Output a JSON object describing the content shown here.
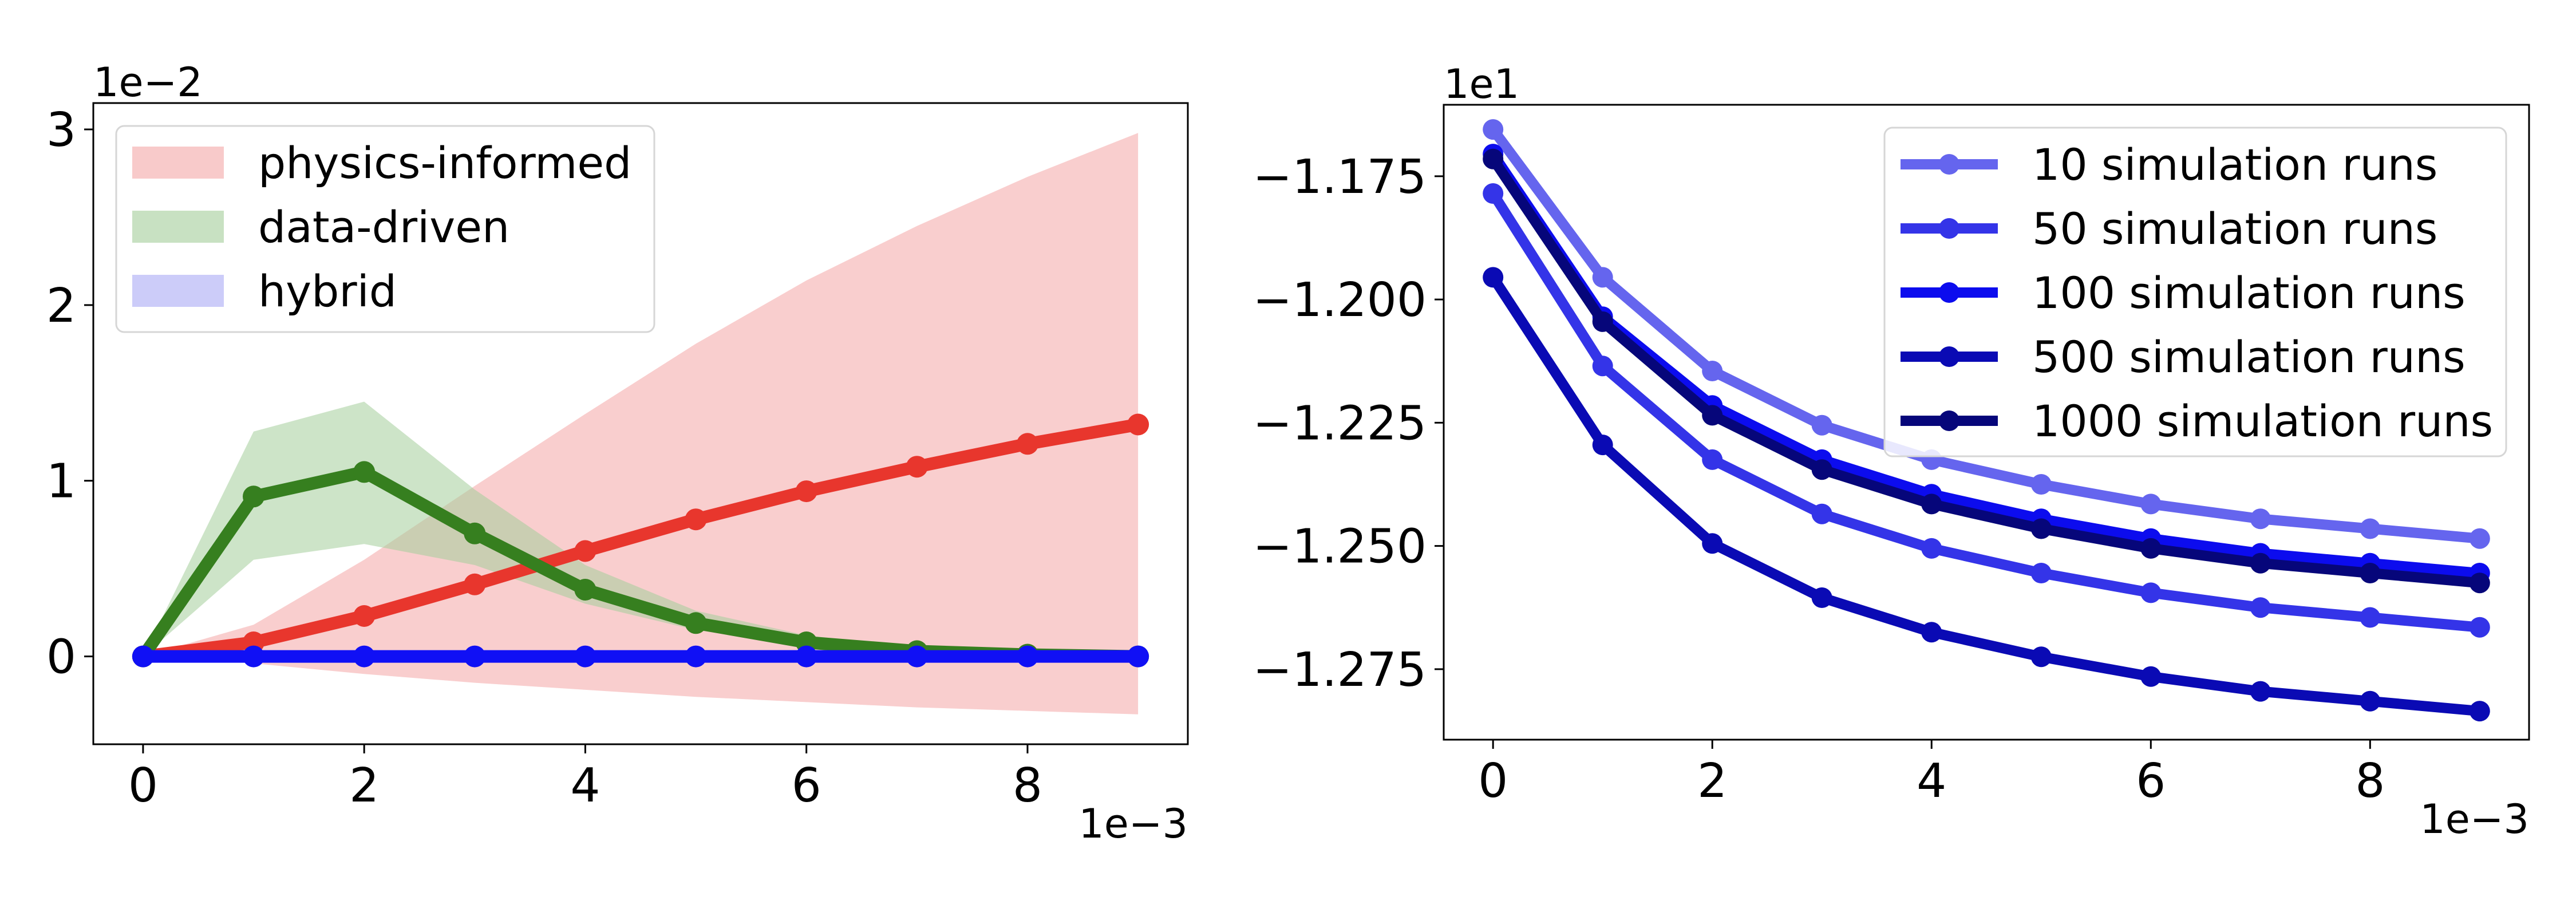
{
  "chart_data": [
    {
      "type": "line",
      "title": "",
      "xlabel": "",
      "ylabel": "",
      "x": [
        0,
        1,
        2,
        3,
        4,
        5,
        6,
        7,
        8,
        9
      ],
      "x_scale_label": "1e−3",
      "y_scale_label": "1e−2",
      "xlim": [
        -0.45,
        9.45
      ],
      "ylim": [
        -0.5,
        3.15
      ],
      "xticks": [
        0,
        2,
        4,
        6,
        8
      ],
      "xtick_labels": [
        "0",
        "2",
        "4",
        "6",
        "8"
      ],
      "yticks": [
        0,
        1,
        2,
        3
      ],
      "ytick_labels": [
        "0",
        "1",
        "2",
        "3"
      ],
      "grid": false,
      "legend_position": "top-left",
      "series": [
        {
          "name": "physics-informed",
          "color": "#e8362d",
          "band_color": "#f4a6a6",
          "values": [
            0,
            0.08,
            0.23,
            0.41,
            0.6,
            0.78,
            0.94,
            1.08,
            1.21,
            1.32
          ],
          "lower": [
            0,
            -0.04,
            -0.1,
            -0.15,
            -0.19,
            -0.23,
            -0.26,
            -0.29,
            -0.31,
            -0.33
          ],
          "upper": [
            0,
            0.18,
            0.55,
            0.97,
            1.38,
            1.78,
            2.14,
            2.45,
            2.73,
            2.98
          ]
        },
        {
          "name": "data-driven",
          "color": "#367f1f",
          "band_color": "#a4cd9a",
          "values": [
            0,
            0.91,
            1.05,
            0.7,
            0.38,
            0.19,
            0.08,
            0.03,
            0.01,
            0.0
          ],
          "lower": [
            0,
            0.55,
            0.64,
            0.52,
            0.3,
            0.15,
            0.06,
            0.02,
            0.01,
            0.0
          ],
          "upper": [
            0,
            1.28,
            1.45,
            0.95,
            0.52,
            0.26,
            0.12,
            0.05,
            0.02,
            0.01
          ]
        },
        {
          "name": "hybrid",
          "color": "#1010f5",
          "band_color": "#aaaaf5",
          "values": [
            0,
            0,
            0,
            0,
            0,
            0,
            0,
            0,
            0,
            0
          ],
          "lower": [
            0,
            -0.01,
            -0.01,
            -0.01,
            -0.01,
            -0.01,
            -0.01,
            -0.01,
            -0.01,
            -0.01
          ],
          "upper": [
            0,
            0.01,
            0.01,
            0.01,
            0.01,
            0.01,
            0.01,
            0.01,
            0.01,
            0.01
          ]
        }
      ]
    },
    {
      "type": "line",
      "title": "",
      "xlabel": "",
      "ylabel": "",
      "x": [
        0,
        1,
        2,
        3,
        4,
        5,
        6,
        7,
        8,
        9
      ],
      "x_scale_label": "1e−3",
      "y_scale_label": "1e1",
      "xlim": [
        -0.45,
        9.45
      ],
      "ylim": [
        -1.2893,
        -1.1605
      ],
      "xticks": [
        0,
        2,
        4,
        6,
        8
      ],
      "xtick_labels": [
        "0",
        "2",
        "4",
        "6",
        "8"
      ],
      "yticks": [
        -1.175,
        -1.2,
        -1.225,
        -1.25,
        -1.275
      ],
      "ytick_labels": [
        "−1.175",
        "−1.200",
        "−1.225",
        "−1.250",
        "−1.275"
      ],
      "grid": false,
      "legend_position": "top-right",
      "series": [
        {
          "name": "10 simulation runs",
          "color": "#6565ee",
          "values": [
            -1.1655,
            -1.1955,
            -1.2145,
            -1.2255,
            -1.2325,
            -1.2375,
            -1.2415,
            -1.2445,
            -1.2465,
            -1.2485
          ]
        },
        {
          "name": "50 simulation runs",
          "color": "#3434e8",
          "values": [
            -1.1785,
            -1.2135,
            -1.2325,
            -1.2435,
            -1.2505,
            -1.2555,
            -1.2595,
            -1.2625,
            -1.2645,
            -1.2665
          ]
        },
        {
          "name": "100 simulation runs",
          "color": "#0c0cee",
          "values": [
            -1.1705,
            -1.2035,
            -1.2215,
            -1.2325,
            -1.2395,
            -1.2445,
            -1.2485,
            -1.2515,
            -1.2535,
            -1.2555
          ]
        },
        {
          "name": "500 simulation runs",
          "color": "#0a0ab4",
          "values": [
            -1.1955,
            -1.2295,
            -1.2495,
            -1.2605,
            -1.2675,
            -1.2725,
            -1.2765,
            -1.2795,
            -1.2815,
            -1.2835
          ]
        },
        {
          "name": "1000 simulation runs",
          "color": "#06067a",
          "values": [
            -1.1715,
            -1.2045,
            -1.2235,
            -1.2345,
            -1.2415,
            -1.2465,
            -1.2505,
            -1.2535,
            -1.2555,
            -1.2575
          ]
        }
      ]
    }
  ]
}
